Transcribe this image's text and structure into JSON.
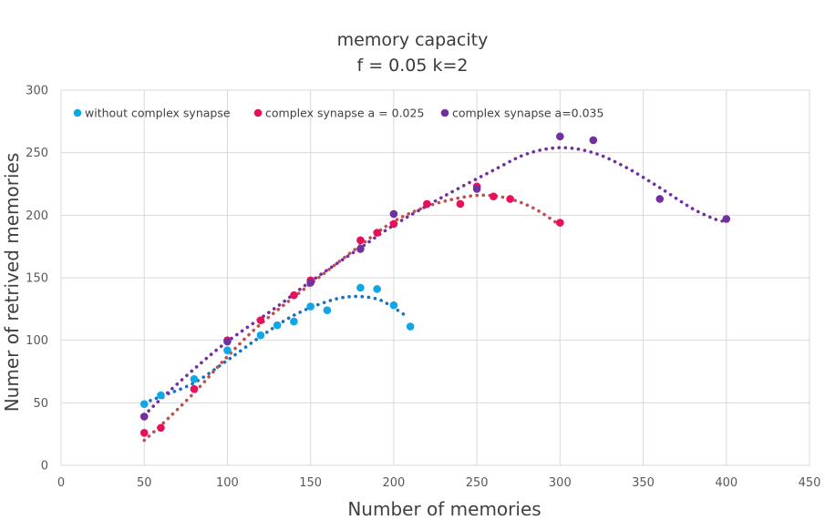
{
  "chart_data": {
    "type": "scatter",
    "title": "memory capacity",
    "subtitle": "f = 0.05  k=2",
    "xlabel": "Number of memories",
    "ylabel": "Numer of retrived memories",
    "xlim": [
      0,
      450
    ],
    "ylim": [
      0,
      300
    ],
    "xticks": [
      0,
      50,
      100,
      150,
      200,
      250,
      300,
      350,
      400,
      450
    ],
    "yticks": [
      0,
      50,
      100,
      150,
      200,
      250,
      300
    ],
    "grid": true,
    "legend_position": "top-left",
    "series": [
      {
        "name": "without complex synapse",
        "color": "#0fa8e6",
        "trend_color": "#1a6fc0",
        "points": [
          [
            50,
            49
          ],
          [
            60,
            56
          ],
          [
            80,
            69
          ],
          [
            100,
            92
          ],
          [
            120,
            104
          ],
          [
            130,
            112
          ],
          [
            140,
            115
          ],
          [
            150,
            127
          ],
          [
            160,
            124
          ],
          [
            180,
            142
          ],
          [
            190,
            141
          ],
          [
            200,
            128
          ],
          [
            210,
            111
          ]
        ],
        "trendline": [
          [
            50,
            50
          ],
          [
            60,
            55
          ],
          [
            80,
            66
          ],
          [
            100,
            84
          ],
          [
            120,
            103
          ],
          [
            140,
            120
          ],
          [
            160,
            131
          ],
          [
            175,
            135
          ],
          [
            190,
            133
          ],
          [
            200,
            126
          ],
          [
            208,
            119
          ]
        ]
      },
      {
        "name": "complex synapse a = 0.025",
        "color": "#e8105c",
        "trend_color": "#c0504d",
        "points": [
          [
            50,
            26
          ],
          [
            60,
            30
          ],
          [
            80,
            61
          ],
          [
            100,
            100
          ],
          [
            120,
            116
          ],
          [
            140,
            136
          ],
          [
            150,
            148
          ],
          [
            180,
            180
          ],
          [
            190,
            186
          ],
          [
            200,
            193
          ],
          [
            220,
            209
          ],
          [
            240,
            209
          ],
          [
            250,
            223
          ],
          [
            260,
            215
          ],
          [
            270,
            213
          ],
          [
            300,
            194
          ]
        ],
        "trendline": [
          [
            50,
            20
          ],
          [
            60,
            32
          ],
          [
            80,
            58
          ],
          [
            100,
            87
          ],
          [
            120,
            113
          ],
          [
            150,
            145
          ],
          [
            180,
            176
          ],
          [
            200,
            195
          ],
          [
            220,
            207
          ],
          [
            240,
            214
          ],
          [
            255,
            216
          ],
          [
            270,
            213
          ],
          [
            285,
            205
          ],
          [
            300,
            192
          ]
        ]
      },
      {
        "name": "complex synapse a=0.035",
        "color": "#7030a0",
        "trend_color": "#7030a0",
        "points": [
          [
            50,
            39
          ],
          [
            100,
            99
          ],
          [
            150,
            146
          ],
          [
            180,
            173
          ],
          [
            200,
            201
          ],
          [
            250,
            221
          ],
          [
            300,
            263
          ],
          [
            320,
            260
          ],
          [
            360,
            213
          ],
          [
            400,
            197
          ]
        ],
        "trendline": [
          [
            50,
            40
          ],
          [
            60,
            53
          ],
          [
            80,
            77
          ],
          [
            100,
            99
          ],
          [
            130,
            127
          ],
          [
            150,
            147
          ],
          [
            180,
            174
          ],
          [
            200,
            192
          ],
          [
            230,
            215
          ],
          [
            260,
            236
          ],
          [
            280,
            249
          ],
          [
            300,
            254
          ],
          [
            320,
            250
          ],
          [
            340,
            238
          ],
          [
            360,
            222
          ],
          [
            380,
            205
          ],
          [
            395,
            196
          ],
          [
            400,
            196
          ]
        ]
      }
    ]
  }
}
